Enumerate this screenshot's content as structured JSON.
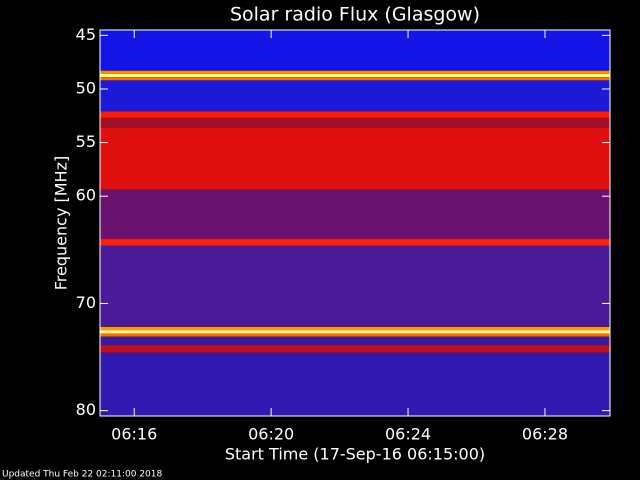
{
  "chart_data": {
    "type": "spectrogram",
    "title": "Solar radio Flux (Glasgow)",
    "xlabel": "Start Time (17-Sep-16 06:15:00)",
    "ylabel": "Frequency [MHz]",
    "footnote": "Updated Thu Feb 22 02:11:00 2018",
    "xlim": [
      0,
      14.9
    ],
    "xticks": [
      {
        "value": 1,
        "label": "06:16"
      },
      {
        "value": 5,
        "label": "06:20"
      },
      {
        "value": 9,
        "label": "06:24"
      },
      {
        "value": 13,
        "label": "06:28"
      }
    ],
    "ylim": [
      80.5,
      44.5
    ],
    "yticks": [
      45,
      50,
      55,
      60,
      70,
      80
    ],
    "bands": [
      {
        "from": 44.5,
        "to": 48.3,
        "color": "#1414e6"
      },
      {
        "from": 48.3,
        "to": 48.6,
        "color": "#ff8a00"
      },
      {
        "from": 48.6,
        "to": 48.9,
        "color": "#ffff80"
      },
      {
        "from": 48.9,
        "to": 49.2,
        "color": "#ff6a00"
      },
      {
        "from": 49.2,
        "to": 52.1,
        "color": "#1a1ad8"
      },
      {
        "from": 52.1,
        "to": 52.7,
        "color": "#ff1a00"
      },
      {
        "from": 52.7,
        "to": 53.6,
        "color": "#a0102a"
      },
      {
        "from": 53.6,
        "to": 59.4,
        "color": "#e01010"
      },
      {
        "from": 59.4,
        "to": 64.0,
        "color": "#6a1270"
      },
      {
        "from": 64.0,
        "to": 64.6,
        "color": "#ff2000"
      },
      {
        "from": 64.6,
        "to": 72.2,
        "color": "#4a1a98"
      },
      {
        "from": 72.2,
        "to": 72.5,
        "color": "#ff9a00"
      },
      {
        "from": 72.5,
        "to": 72.8,
        "color": "#ffff90"
      },
      {
        "from": 72.8,
        "to": 73.1,
        "color": "#ff6a00"
      },
      {
        "from": 73.1,
        "to": 73.9,
        "color": "#3a18a0"
      },
      {
        "from": 73.9,
        "to": 74.6,
        "color": "#c01020"
      },
      {
        "from": 74.6,
        "to": 80.5,
        "color": "#3018b0"
      }
    ]
  }
}
